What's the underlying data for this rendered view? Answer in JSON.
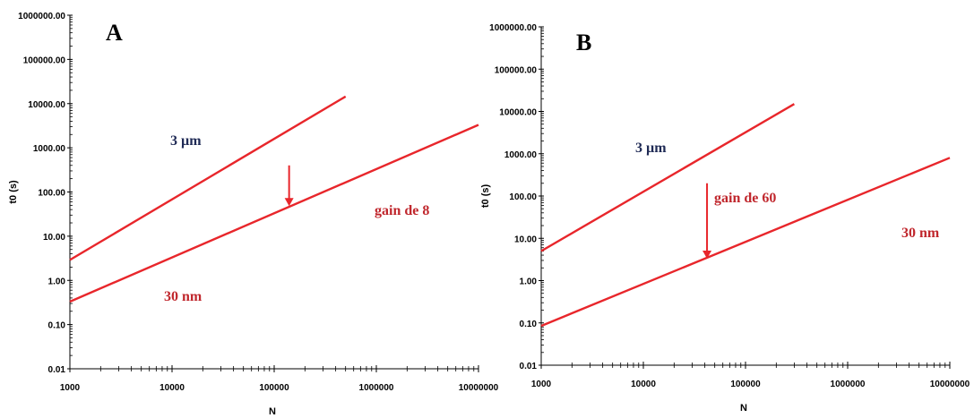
{
  "colors": {
    "series": "#e8262b",
    "label_dark": "#1f2a55",
    "label_red": "#c0272d",
    "axis": "#000000"
  },
  "chart_data": [
    {
      "panel": "A",
      "type": "line",
      "xscale": "log",
      "yscale": "log",
      "xlabel": "N",
      "ylabel": "t0 (s)",
      "xlim": [
        1000,
        10000000
      ],
      "ylim": [
        0.01,
        1000000
      ],
      "x_tick_labels": [
        "1000",
        "10000",
        "100000",
        "1000000",
        "10000000"
      ],
      "y_tick_labels": [
        "0.01",
        "0.10",
        "1.00",
        "10.00",
        "100.00",
        "1000.00",
        "10000.00",
        "100000.00",
        "1000000.00"
      ],
      "grid": false,
      "series": [
        {
          "name": "3 µm",
          "x": [
            1000,
            500000
          ],
          "y": [
            2.9,
            14500
          ]
        },
        {
          "name": "30 nm",
          "x": [
            1000,
            10000000
          ],
          "y": [
            0.33,
            3300
          ]
        }
      ],
      "annotation": {
        "text": "gain de 8",
        "x": 140000,
        "y_from": 400,
        "y_to": 48
      }
    },
    {
      "panel": "B",
      "type": "line",
      "xscale": "log",
      "yscale": "log",
      "xlabel": "N",
      "ylabel": "t0 (s)",
      "xlim": [
        1000,
        10000000
      ],
      "ylim": [
        0.01,
        1000000
      ],
      "x_tick_labels": [
        "1000",
        "10000",
        "100000",
        "1000000",
        "10000000"
      ],
      "y_tick_labels": [
        "0.01",
        "0.10",
        "1.00",
        "10.00",
        "100.00",
        "1000.00",
        "10000.00",
        "100000.00",
        "1000000.00"
      ],
      "grid": false,
      "series": [
        {
          "name": "3 µm",
          "x": [
            1000,
            300000
          ],
          "y": [
            5,
            15000
          ]
        },
        {
          "name": "30 nm",
          "x": [
            1000,
            10000000
          ],
          "y": [
            0.085,
            800
          ]
        }
      ],
      "annotation": {
        "text": "gain de 60",
        "x": 42000,
        "y_from": 200,
        "y_to": 3.3
      }
    }
  ]
}
